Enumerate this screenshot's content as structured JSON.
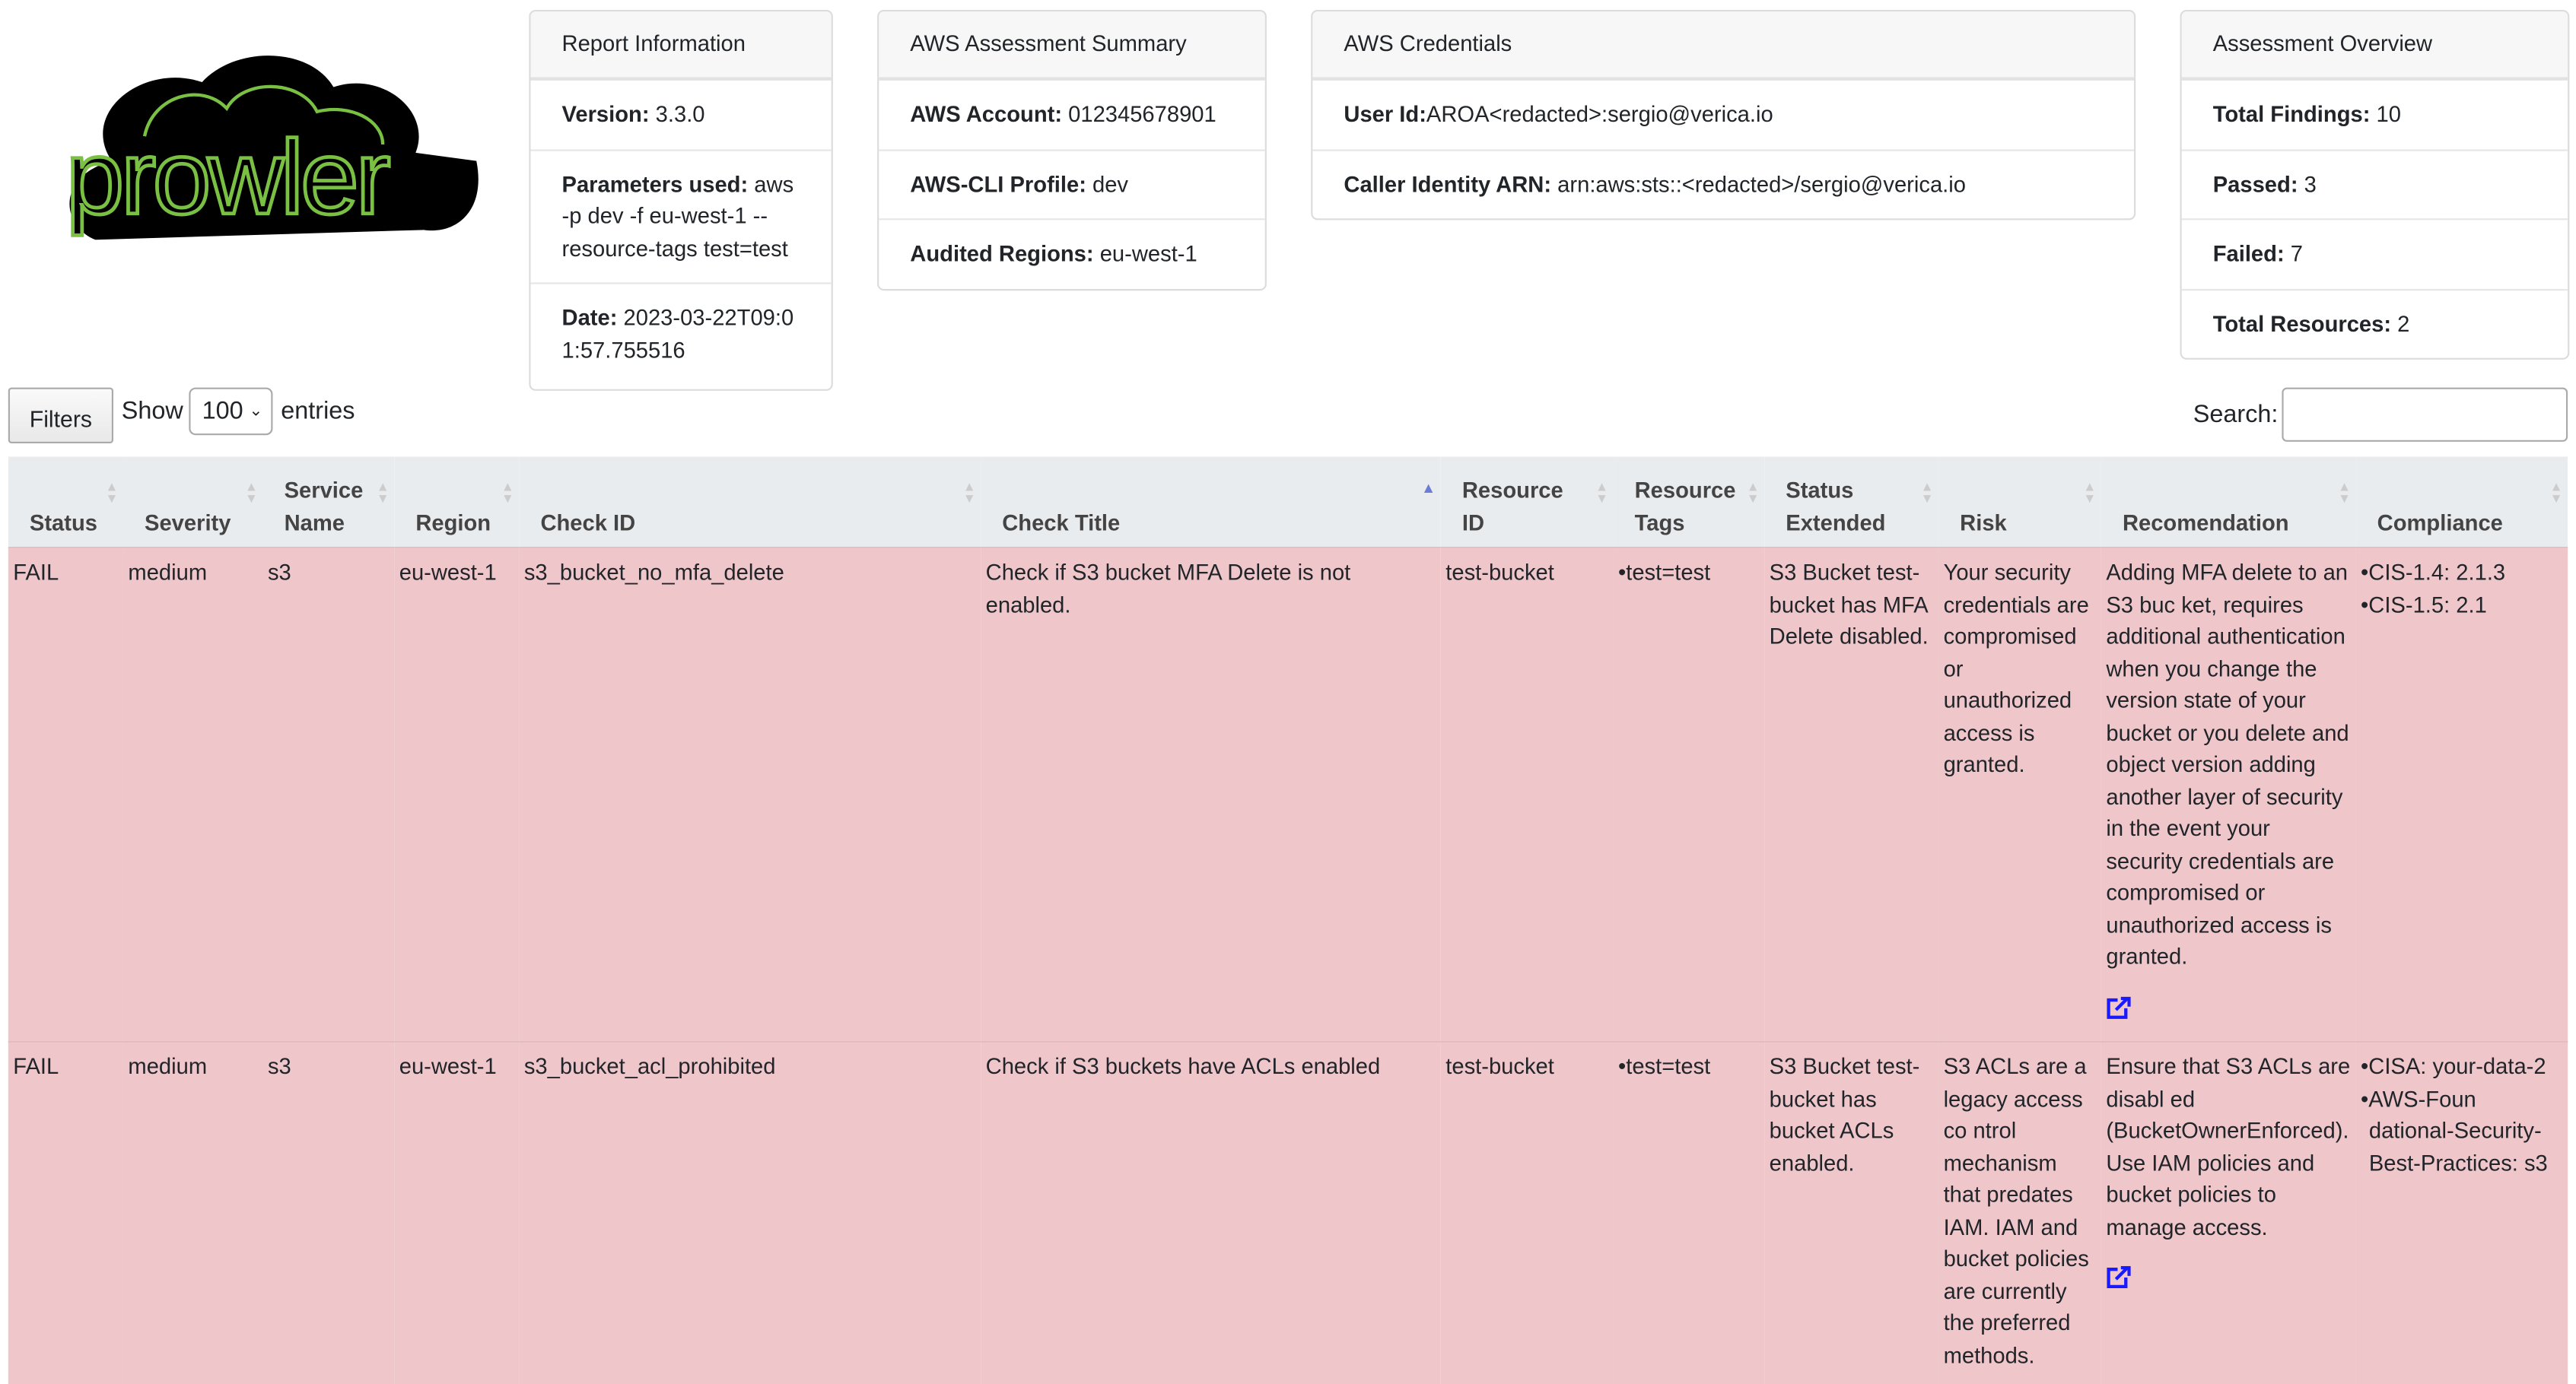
{
  "logo": {
    "text": "prowler",
    "colors": {
      "fill": "#000000",
      "stroke": "#7ac143"
    }
  },
  "report_info": {
    "title": "Report Information",
    "rows": [
      {
        "label": "Version:",
        "value": " 3.3.0"
      },
      {
        "label": "Parameters used:",
        "value": " aws -p dev -f eu-west-1 --resource-tags test=test"
      },
      {
        "label": "Date:",
        "value": " 2023-03-22T09:01:57.755516"
      }
    ]
  },
  "assessment_summary": {
    "title": "AWS Assessment Summary",
    "rows": [
      {
        "label": "AWS Account:",
        "value": " 012345678901"
      },
      {
        "label": "AWS-CLI Profile:",
        "value": " dev"
      },
      {
        "label": "Audited Regions:",
        "value": " eu-west-1"
      }
    ]
  },
  "credentials": {
    "title": "AWS Credentials",
    "rows": [
      {
        "label": "User Id:",
        "value": "AROA<redacted>:sergio@verica.io"
      },
      {
        "label": "Caller Identity ARN:",
        "value": " arn:aws:sts::<redacted>/sergio@verica.io"
      }
    ]
  },
  "overview": {
    "title": "Assessment Overview",
    "rows": [
      {
        "label": "Total Findings:",
        "value": " 10"
      },
      {
        "label": "Passed:",
        "value": " 3"
      },
      {
        "label": "Failed:",
        "value": " 7"
      },
      {
        "label": "Total Resources:",
        "value": " 2"
      }
    ]
  },
  "controls": {
    "filters_label": "Filters",
    "show_label": "Show",
    "entries_value": "100",
    "entries_label": "entries",
    "search_label": "Search:",
    "search_value": ""
  },
  "table": {
    "sorted_column": "Check Title",
    "sort_direction": "ascending",
    "columns": [
      "Status",
      "Severity",
      "Service Name",
      "Region",
      "Check ID",
      "Check Title",
      "Resource ID",
      "Resource Tags",
      "Status Extended",
      "Risk",
      "Recomendation",
      "Compliance"
    ],
    "rows": [
      {
        "status": "FAIL",
        "severity": "medium",
        "service": "s3",
        "region": "eu-west-1",
        "check_id": "s3_bucket_no_mfa_delete",
        "check_title": "Check if S3 bucket MFA Delete is not enabled.",
        "resource_id": "test-bucket",
        "resource_tags": [
          "test=test"
        ],
        "status_extended": "S3 Bucket test-bucket has MFA Delete disabled.",
        "risk": "Your security credentials are compromised or unauthorized access is granted.",
        "recommendation": "Adding MFA delete to an S3 buc ket, requires additional authentication when you change the version state of your bucket or you delete and object version adding another layer of security in the event your security credentials are compromised or unauthorized access is granted.",
        "compliance": [
          "CIS-1.4: 2.1.3",
          "CIS-1.5: 2.1"
        ]
      },
      {
        "status": "FAIL",
        "severity": "medium",
        "service": "s3",
        "region": "eu-west-1",
        "check_id": "s3_bucket_acl_prohibited",
        "check_title": "Check if S3 buckets have ACLs enabled",
        "resource_id": "test-bucket",
        "resource_tags": [
          "test=test"
        ],
        "status_extended": "S3 Bucket test-bucket has bucket ACLs enabled.",
        "risk": "S3 ACLs are a legacy access co ntrol mechanism that predates IAM. IAM and bucket policies are currently the preferred methods.",
        "recommendation": "Ensure that S3 ACLs are disabl ed (BucketOwnerEnforced). Use IAM policies and bucket policies to manage access.",
        "compliance": [
          "CISA: your-data-2",
          "AWS-Foun dational-Security-Best-Practices: s3"
        ]
      }
    ]
  },
  "colors": {
    "fail_row": "#efc7cb",
    "header_bg": "#e9ecef",
    "link": "#1a1aff",
    "sort_active": "#6b7bd6"
  }
}
